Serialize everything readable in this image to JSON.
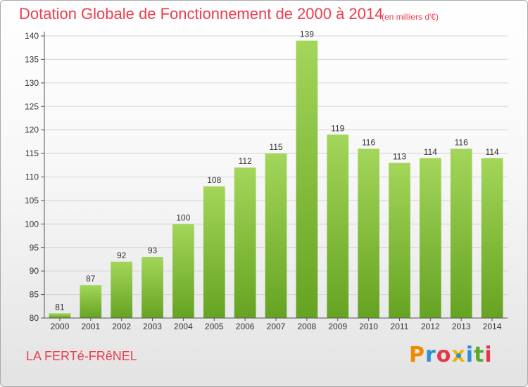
{
  "header": {
    "title": "Dotation Globale de Fonctionnement de 2000 à 2014",
    "unit_note": "(en milliers d'€)"
  },
  "footer": {
    "commune": "LA FERTé-FRêNEL",
    "brand": {
      "letters": [
        "P",
        "r",
        "o",
        "x",
        "i",
        "t",
        "i"
      ],
      "colors": [
        "#f28a00",
        "#2f8ed8",
        "#e2364a",
        "#f2b400",
        "#2f8ed8",
        "#5aaa2a",
        "#e2364a"
      ]
    }
  },
  "colors": {
    "text_accent": "#ec3e4e",
    "bar_light": "#a3d65a",
    "bar_dark": "#66a322",
    "grid": "#d4d4d4"
  },
  "chart_data": {
    "type": "bar",
    "title": "Dotation Globale de Fonctionnement de 2000 à 2014",
    "subtitle": "(en milliers d'€)",
    "categories": [
      "2000",
      "2001",
      "2002",
      "2003",
      "2004",
      "2005",
      "2006",
      "2007",
      "2008",
      "2009",
      "2010",
      "2011",
      "2012",
      "2013",
      "2014"
    ],
    "values": [
      81,
      87,
      92,
      93,
      100,
      108,
      112,
      115,
      139,
      119,
      116,
      113,
      114,
      116,
      114
    ],
    "ylim": [
      80,
      140
    ],
    "yticks": [
      80,
      85,
      90,
      95,
      100,
      105,
      110,
      115,
      120,
      125,
      130,
      135,
      140
    ],
    "grid": true,
    "data_labels": true,
    "xlabel": "",
    "ylabel": ""
  }
}
